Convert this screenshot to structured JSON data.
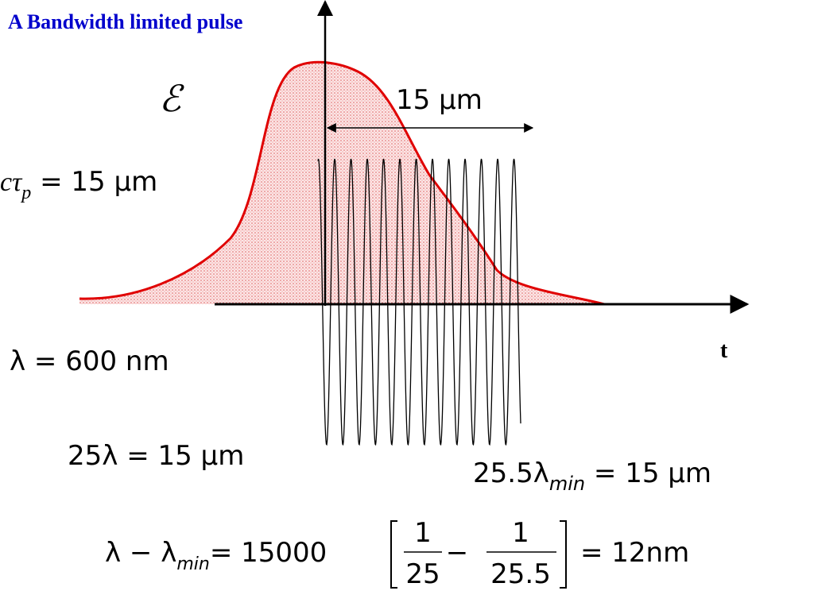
{
  "title": "A Bandwidth limited pulse",
  "field_symbol": "ℰ",
  "span_label": "15 μm",
  "axis_label": "t",
  "pulse_length": {
    "main": "cτ",
    "sub": "p",
    "rest": " = 15 μm"
  },
  "wavelength": "λ = 600 nm",
  "cycles": "25λ = 15 μm",
  "cycles_min": {
    "main": "25.5λ",
    "sub": "min",
    "rest": " = 15 μm"
  },
  "difference": {
    "main": "λ − λ",
    "sub": "min",
    "coef": "= 15000",
    "num1": "1",
    "den1": "25",
    "minus": "−",
    "num2": "1",
    "den2": "25.5",
    "result": "= 12nm"
  }
}
